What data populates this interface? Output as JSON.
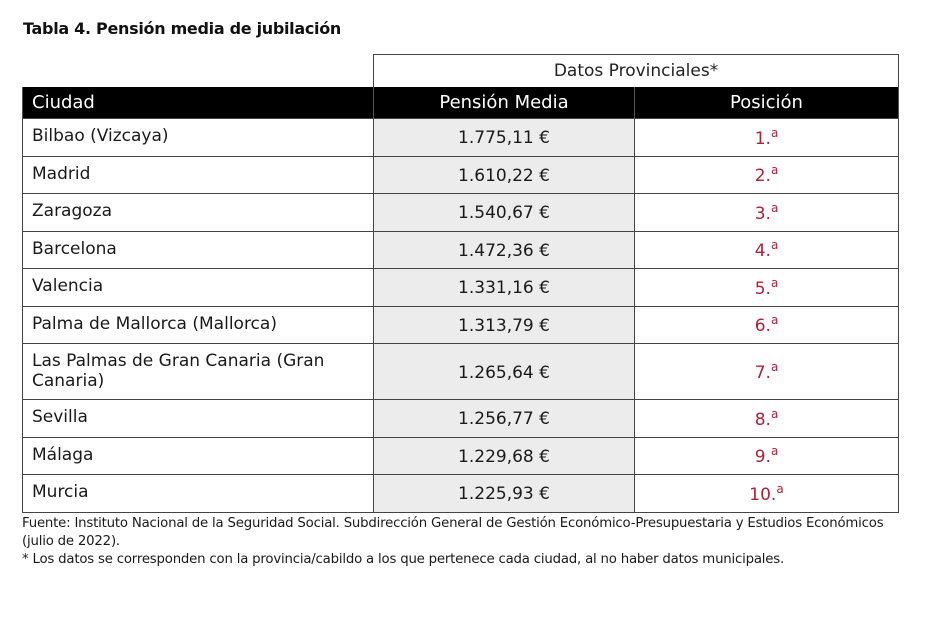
{
  "document": {
    "title": "Tabla 4. Pensión media de jubilación"
  },
  "table": {
    "group_header": "Datos Provinciales*",
    "columns": {
      "city": "Ciudad",
      "pension": "Pensión Media",
      "position": "Posición"
    },
    "position_suffix": "a",
    "accent_color": "#b0203a",
    "rows": [
      {
        "city": "Bilbao (Vizcaya)",
        "pension": "1.775,11 €",
        "position": "1."
      },
      {
        "city": "Madrid",
        "pension": "1.610,22 €",
        "position": "2."
      },
      {
        "city": "Zaragoza",
        "pension": "1.540,67 €",
        "position": "3."
      },
      {
        "city": "Barcelona",
        "pension": "1.472,36 €",
        "position": "4."
      },
      {
        "city": "Valencia",
        "pension": "1.331,16 €",
        "position": "5."
      },
      {
        "city": "Palma de Mallorca (Mallorca)",
        "pension": "1.313,79 €",
        "position": "6."
      },
      {
        "city": "Las Palmas de Gran Canaria (Gran Canaria)",
        "pension": "1.265,64 €",
        "position": "7."
      },
      {
        "city": "Sevilla",
        "pension": "1.256,77 €",
        "position": "8."
      },
      {
        "city": "Málaga",
        "pension": "1.229,68 €",
        "position": "9."
      },
      {
        "city": "Murcia",
        "pension": "1.225,93 €",
        "position": "10."
      }
    ]
  },
  "notes": {
    "source": "Fuente: Instituto Nacional de la Seguridad Social. Subdirección General de Gestión Económico-Presupuestaria y Estudios Económicos (julio de 2022).",
    "footnote": "* Los datos se corresponden con la provincia/cabildo a los que pertenece cada ciudad, al no haber datos municipales."
  }
}
